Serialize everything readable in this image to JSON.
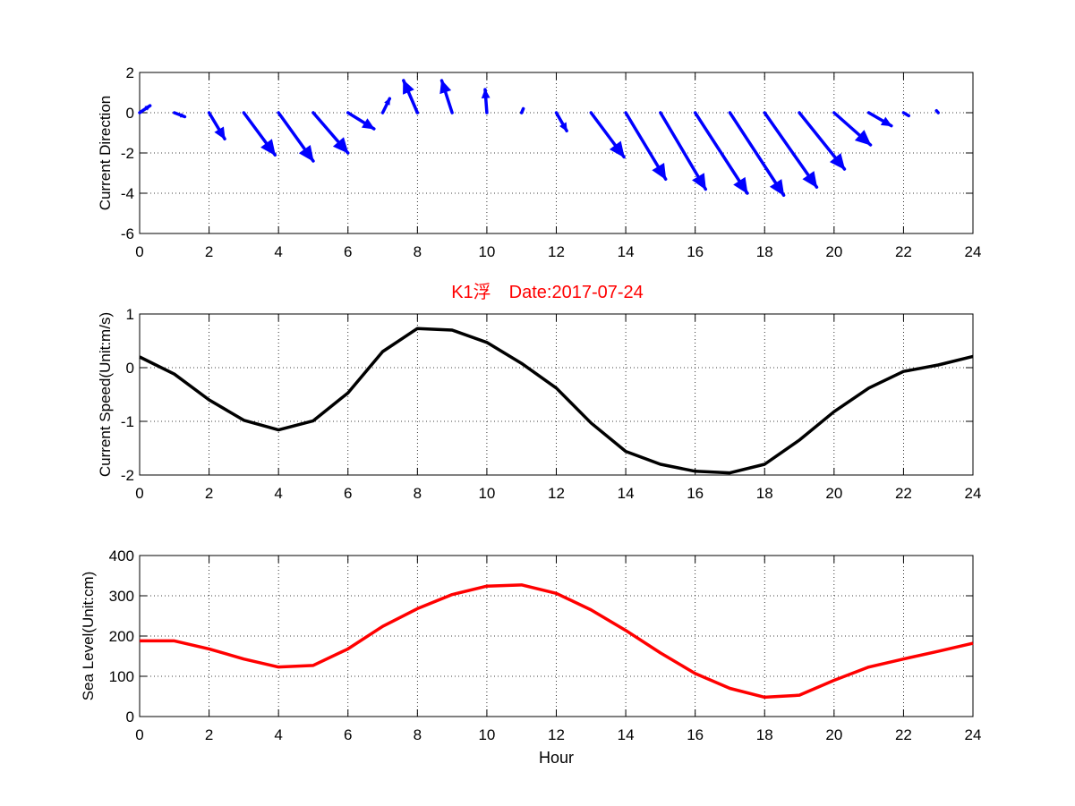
{
  "chart_data": [
    {
      "type": "quiver",
      "ylabel": "Current Direction",
      "xlabel": "",
      "xlim": [
        0,
        24
      ],
      "ylim": [
        -6,
        2
      ],
      "xticks": [
        0,
        2,
        4,
        6,
        8,
        10,
        12,
        14,
        16,
        18,
        20,
        22,
        24
      ],
      "yticks": [
        -6,
        -4,
        -2,
        0,
        2
      ],
      "grid": true,
      "color": "#0000ff",
      "vectors": [
        {
          "x": 0,
          "u": 0.3,
          "v": 0.35
        },
        {
          "x": 1,
          "u": 0.3,
          "v": -0.2
        },
        {
          "x": 2,
          "u": 0.45,
          "v": -1.3
        },
        {
          "x": 3,
          "u": 0.9,
          "v": -2.1
        },
        {
          "x": 4,
          "u": 1.0,
          "v": -2.4
        },
        {
          "x": 5,
          "u": 1.0,
          "v": -2.0
        },
        {
          "x": 6,
          "u": 0.75,
          "v": -0.8
        },
        {
          "x": 7,
          "u": 0.2,
          "v": 0.7
        },
        {
          "x": 8,
          "u": -0.4,
          "v": 1.6
        },
        {
          "x": 9,
          "u": -0.3,
          "v": 1.6
        },
        {
          "x": 10,
          "u": -0.05,
          "v": 1.15
        },
        {
          "x": 11,
          "u": 0.05,
          "v": 0.2
        },
        {
          "x": 12,
          "u": 0.3,
          "v": -0.9
        },
        {
          "x": 13,
          "u": 0.95,
          "v": -2.2
        },
        {
          "x": 14,
          "u": 1.15,
          "v": -3.3
        },
        {
          "x": 15,
          "u": 1.3,
          "v": -3.8
        },
        {
          "x": 16,
          "u": 1.5,
          "v": -4.0
        },
        {
          "x": 17,
          "u": 1.55,
          "v": -4.1
        },
        {
          "x": 18,
          "u": 1.5,
          "v": -3.7
        },
        {
          "x": 19,
          "u": 1.3,
          "v": -2.8
        },
        {
          "x": 20,
          "u": 1.05,
          "v": -1.6
        },
        {
          "x": 21,
          "u": 0.65,
          "v": -0.65
        },
        {
          "x": 22,
          "u": 0.15,
          "v": -0.15
        },
        {
          "x": 23,
          "u": -0.05,
          "v": 0.1
        }
      ]
    },
    {
      "type": "line",
      "title": "K1浮　Date:2017-07-24",
      "title_color": "#ff0000",
      "ylabel": "Current Speed(Unit:m/s)",
      "xlabel": "",
      "xlim": [
        0,
        24
      ],
      "ylim": [
        -2,
        1
      ],
      "xticks": [
        0,
        2,
        4,
        6,
        8,
        10,
        12,
        14,
        16,
        18,
        20,
        22,
        24
      ],
      "yticks": [
        -2,
        -1,
        0,
        1
      ],
      "grid": true,
      "series": [
        {
          "color": "#000000",
          "x": [
            0,
            1,
            2,
            3,
            4,
            5,
            6,
            7,
            8,
            9,
            10,
            11,
            12,
            13,
            14,
            15,
            16,
            17,
            18,
            19,
            20,
            21,
            22,
            23,
            24
          ],
          "y": [
            0.2,
            -0.12,
            -0.6,
            -0.98,
            -1.16,
            -0.99,
            -0.47,
            0.3,
            0.73,
            0.7,
            0.47,
            0.08,
            -0.38,
            -1.03,
            -1.56,
            -1.8,
            -1.93,
            -1.96,
            -1.8,
            -1.35,
            -0.82,
            -0.38,
            -0.07,
            0.05,
            0.21
          ]
        }
      ]
    },
    {
      "type": "line",
      "ylabel": "Sea Level(Unit:cm)",
      "xlabel": "Hour",
      "xlim": [
        0,
        24
      ],
      "ylim": [
        0,
        400
      ],
      "xticks": [
        0,
        2,
        4,
        6,
        8,
        10,
        12,
        14,
        16,
        18,
        20,
        22,
        24
      ],
      "yticks": [
        0,
        100,
        200,
        300,
        400
      ],
      "grid": true,
      "series": [
        {
          "color": "#ff0000",
          "x": [
            0,
            1,
            2,
            3,
            4,
            5,
            6,
            7,
            8,
            9,
            10,
            11,
            12,
            13,
            14,
            15,
            16,
            17,
            18,
            19,
            20,
            21,
            22,
            23,
            24
          ],
          "y": [
            188,
            188,
            168,
            143,
            123,
            127,
            168,
            224,
            268,
            303,
            324,
            327,
            306,
            265,
            214,
            158,
            107,
            70,
            48,
            53,
            90,
            123,
            143,
            162,
            182
          ]
        }
      ]
    }
  ]
}
